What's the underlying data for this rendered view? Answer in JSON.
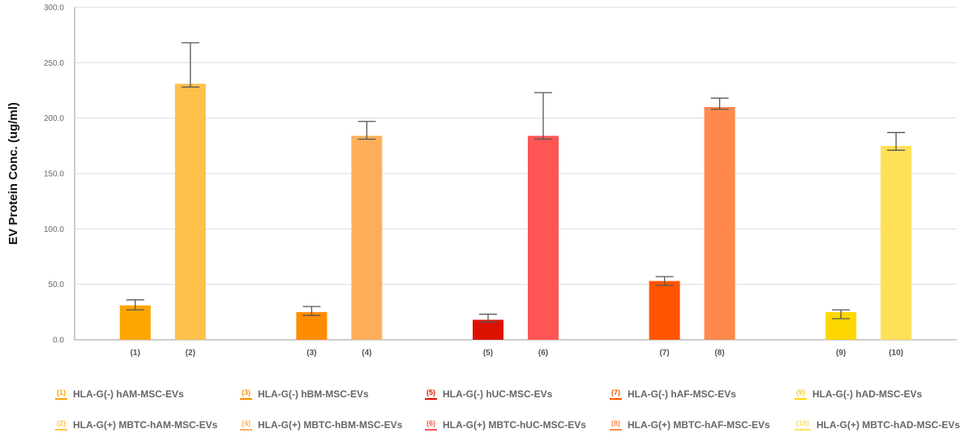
{
  "chart_data": {
    "type": "bar",
    "title": "",
    "xlabel": "",
    "ylabel": "EV Protein Conc. (ug/ml)",
    "ylim": [
      0,
      300
    ],
    "yticks": [
      "0.0",
      "50.0",
      "100.0",
      "150.0",
      "200.0",
      "250.0",
      "300.0"
    ],
    "grid": true,
    "legend_position": "bottom",
    "categories": [
      "(1)",
      "(2)",
      "(3)",
      "(4)",
      "(5)",
      "(6)",
      "(7)",
      "(8)",
      "(9)",
      "(10)"
    ],
    "values": [
      31,
      231,
      25,
      184,
      18,
      184,
      53,
      210,
      25,
      175
    ],
    "error_low": [
      27,
      228,
      22,
      181,
      16,
      181,
      49,
      208,
      19,
      171
    ],
    "error_high": [
      36,
      268,
      30,
      197,
      23,
      223,
      57,
      218,
      27,
      187
    ],
    "colors": [
      "#FFA500",
      "#FFC04C",
      "#FF8C00",
      "#FFAE5A",
      "#DD1100",
      "#FF5555",
      "#FF5500",
      "#FF884C",
      "#FFD700",
      "#FFE057"
    ],
    "legend": [
      {
        "badge": "(1)",
        "label": "HLA-G(-) hAM-MSC-EVs",
        "color": "#FFA500"
      },
      {
        "badge": "(3)",
        "label": "HLA-G(-) hBM-MSC-EVs",
        "color": "#FF8C00"
      },
      {
        "badge": "(5)",
        "label": "HLA-G(-) hUC-MSC-EVs",
        "color": "#DD1100"
      },
      {
        "badge": "(7)",
        "label": "HLA-G(-) hAF-MSC-EVs",
        "color": "#FF5500"
      },
      {
        "badge": "(9)",
        "label": "HLA-G(-) hAD-MSC-EVs",
        "color": "#FFD700"
      },
      {
        "badge": "(2)",
        "label": "HLA-G(+) MBTC-hAM-MSC-EVs",
        "color": "#FFC04C"
      },
      {
        "badge": "(4)",
        "label": "HLA-G(+) MBTC-hBM-MSC-EVs",
        "color": "#FFAE5A"
      },
      {
        "badge": "(6)",
        "label": "HLA-G(+) MBTC-hUC-MSC-EVs",
        "color": "#FF5555"
      },
      {
        "badge": "(8)",
        "label": "HLA-G(+) MBTC-hAF-MSC-EVs",
        "color": "#FF884C"
      },
      {
        "badge": "(10)",
        "label": "HLA-G(+) MBTC-hAD-MSC-EVs",
        "color": "#FFE057"
      }
    ]
  }
}
